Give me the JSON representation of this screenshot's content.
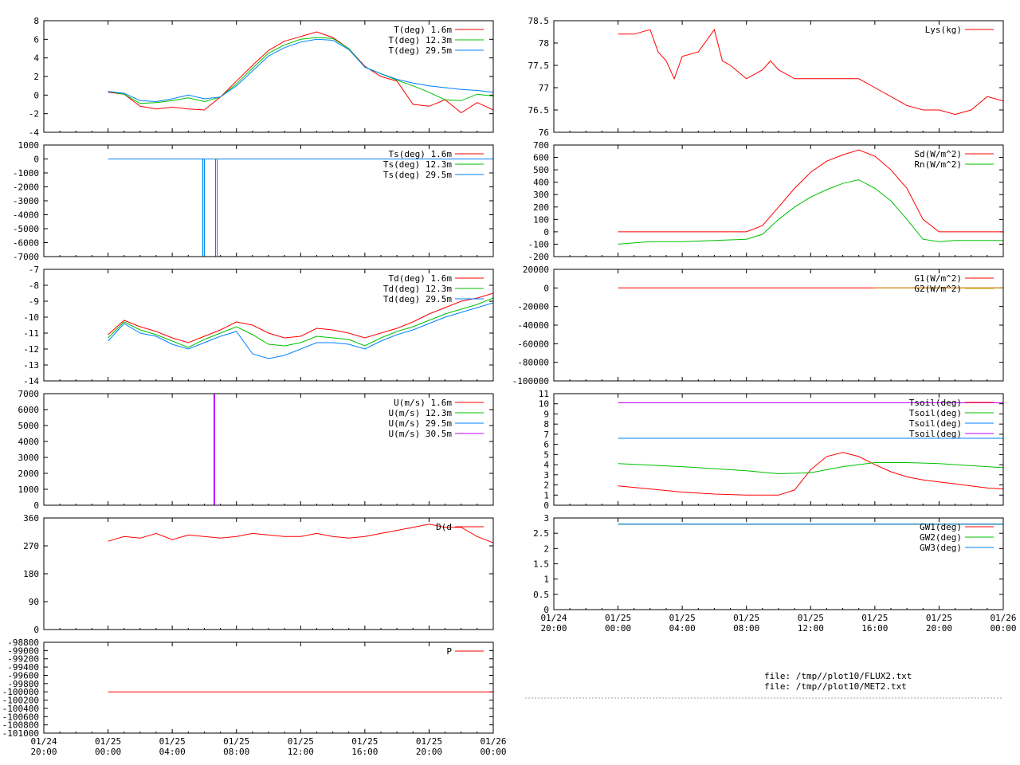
{
  "colors": {
    "red": "#ff0000",
    "green": "#00c000",
    "blue": "#0080ff",
    "magenta": "#c000ff",
    "olive": "#c0a000"
  },
  "files": [
    "file: /tmp//plot10/FLUX2.txt",
    "file: /tmp//plot10/MET2.txt"
  ],
  "time_axis": {
    "ticks": [
      "01/24 20:00",
      "01/25 00:00",
      "01/25 04:00",
      "01/25 08:00",
      "01/25 12:00",
      "01/25 16:00",
      "01/25 20:00",
      "01/26 00:00"
    ],
    "range_hours": [
      0,
      28
    ]
  },
  "chart_data": [
    {
      "id": "temperature",
      "type": "line",
      "ylim": [
        -4,
        8
      ],
      "yticks": [
        "-4",
        "-2",
        "0",
        "2",
        "4",
        "6",
        "8"
      ],
      "series": [
        {
          "name": "T(deg)  1.6m",
          "color": "#ff0000",
          "x": [
            4,
            5,
            6,
            7,
            8,
            9,
            10,
            11,
            12,
            13,
            14,
            15,
            16,
            17,
            18,
            19,
            20,
            21,
            22,
            23,
            24,
            25,
            26,
            27,
            28
          ],
          "y": [
            0.3,
            0.1,
            -1.2,
            -1.5,
            -1.3,
            -1.5,
            -1.6,
            -0.2,
            1.5,
            3.2,
            4.8,
            5.8,
            6.3,
            6.8,
            6.2,
            5.0,
            3.1,
            2.0,
            1.5,
            -1.0,
            -1.2,
            -0.5,
            -1.9,
            -0.8,
            -1.6
          ]
        },
        {
          "name": "T(deg) 12.3m",
          "color": "#00c000",
          "x": [
            4,
            5,
            6,
            7,
            8,
            9,
            10,
            11,
            12,
            13,
            14,
            15,
            16,
            17,
            18,
            19,
            20,
            21,
            22,
            23,
            24,
            25,
            26,
            27,
            28
          ],
          "y": [
            0.4,
            0.1,
            -0.9,
            -0.8,
            -0.6,
            -0.3,
            -0.7,
            -0.2,
            1.2,
            2.9,
            4.5,
            5.4,
            6.0,
            6.2,
            6.1,
            5.0,
            3.0,
            2.3,
            1.6,
            1.0,
            0.3,
            -0.5,
            -0.6,
            0.1,
            -0.1
          ]
        },
        {
          "name": "T(deg) 29.5m",
          "color": "#0080ff",
          "x": [
            4,
            5,
            6,
            7,
            8,
            9,
            10,
            11,
            12,
            13,
            14,
            15,
            16,
            17,
            18,
            19,
            20,
            21,
            22,
            23,
            24,
            25,
            26,
            27,
            28
          ],
          "y": [
            0.4,
            0.2,
            -0.6,
            -0.7,
            -0.4,
            0.0,
            -0.4,
            -0.2,
            1.0,
            2.6,
            4.2,
            5.1,
            5.7,
            6.0,
            5.9,
            4.9,
            3.0,
            2.3,
            1.7,
            1.3,
            1.0,
            0.8,
            0.6,
            0.5,
            0.3
          ]
        }
      ]
    },
    {
      "id": "surface-temperature",
      "type": "line",
      "ylim": [
        -7000,
        1000
      ],
      "yticks": [
        "-7000",
        "-6000",
        "-5000",
        "-4000",
        "-3000",
        "-2000",
        "-1000",
        "0",
        "1000"
      ],
      "series": [
        {
          "name": "Ts(deg)  1.6m",
          "color": "#ff0000",
          "x": [
            4,
            28
          ],
          "y": [
            0,
            0
          ]
        },
        {
          "name": "Ts(deg) 12.3m",
          "color": "#00c000",
          "x": [
            4,
            9.9,
            9.9,
            10.0,
            10.0,
            28
          ],
          "y": [
            0,
            0,
            -7000,
            -7000,
            0,
            0
          ]
        },
        {
          "name": "Ts(deg) 29.5m",
          "color": "#0080ff",
          "x": [
            4,
            9.9,
            9.9,
            10.0,
            10.0,
            10.7,
            10.7,
            10.8,
            10.8,
            28
          ],
          "y": [
            0,
            0,
            -7000,
            -7000,
            0,
            0,
            -7000,
            -7000,
            0,
            0
          ]
        }
      ]
    },
    {
      "id": "dewpoint",
      "type": "line",
      "ylim": [
        -14,
        -7
      ],
      "yticks": [
        "-14",
        "-13",
        "-12",
        "-11",
        "-10",
        "-9",
        "-8",
        "-7"
      ],
      "series": [
        {
          "name": "Td(deg)  1.6m",
          "color": "#ff0000",
          "x": [
            4,
            5,
            6,
            7,
            8,
            9,
            10,
            11,
            12,
            13,
            14,
            15,
            16,
            17,
            18,
            19,
            20,
            21,
            22,
            23,
            24,
            25,
            26,
            27,
            28
          ],
          "y": [
            -11.1,
            -10.2,
            -10.6,
            -10.9,
            -11.3,
            -11.6,
            -11.2,
            -10.8,
            -10.3,
            -10.5,
            -11.0,
            -11.3,
            -11.2,
            -10.7,
            -10.8,
            -11.0,
            -11.3,
            -11.0,
            -10.7,
            -10.3,
            -9.8,
            -9.4,
            -9.0,
            -8.8,
            -8.5
          ]
        },
        {
          "name": "Td(deg) 12.3m",
          "color": "#00c000",
          "x": [
            4,
            5,
            6,
            7,
            8,
            9,
            10,
            11,
            12,
            13,
            14,
            15,
            16,
            17,
            18,
            19,
            20,
            21,
            22,
            23,
            24,
            25,
            26,
            27,
            28
          ],
          "y": [
            -11.3,
            -10.3,
            -10.8,
            -11.1,
            -11.5,
            -11.9,
            -11.4,
            -11.0,
            -10.6,
            -11.1,
            -11.7,
            -11.8,
            -11.6,
            -11.2,
            -11.3,
            -11.4,
            -11.8,
            -11.3,
            -10.9,
            -10.6,
            -10.2,
            -9.8,
            -9.5,
            -9.2,
            -8.8
          ]
        },
        {
          "name": "Td(deg) 29.5m",
          "color": "#0080ff",
          "x": [
            4,
            5,
            6,
            7,
            8,
            9,
            10,
            11,
            12,
            13,
            14,
            15,
            16,
            17,
            18,
            19,
            20,
            21,
            22,
            23,
            24,
            25,
            26,
            27,
            28
          ],
          "y": [
            -11.5,
            -10.4,
            -11.0,
            -11.2,
            -11.7,
            -12.0,
            -11.6,
            -11.2,
            -10.9,
            -12.3,
            -12.6,
            -12.4,
            -12.0,
            -11.6,
            -11.6,
            -11.7,
            -12.0,
            -11.5,
            -11.1,
            -10.8,
            -10.4,
            -10.0,
            -9.7,
            -9.4,
            -9.1
          ]
        }
      ]
    },
    {
      "id": "wind-speed",
      "type": "line",
      "ylim": [
        0,
        7000
      ],
      "yticks": [
        "0",
        "1000",
        "2000",
        "3000",
        "4000",
        "5000",
        "6000",
        "7000"
      ],
      "series": [
        {
          "name": "U(m/s)  1.6m",
          "color": "#ff0000",
          "x": [
            4,
            28
          ],
          "y": [
            0,
            0
          ]
        },
        {
          "name": "U(m/s) 12.3m",
          "color": "#00c000",
          "x": [
            4,
            28
          ],
          "y": [
            0,
            0
          ]
        },
        {
          "name": "U(m/s) 29.5m",
          "color": "#0080ff",
          "x": [
            4,
            28
          ],
          "y": [
            0,
            0
          ]
        },
        {
          "name": "U(m/s) 30.5m",
          "color": "#c000ff",
          "x": [
            4,
            10.6,
            10.6,
            10.65,
            10.65,
            28
          ],
          "y": [
            0,
            0,
            7000,
            7000,
            0,
            0
          ]
        }
      ]
    },
    {
      "id": "wind-direction",
      "type": "line",
      "ylim": [
        0,
        360
      ],
      "yticks": [
        "0",
        "90",
        "180",
        "270",
        "360"
      ],
      "series": [
        {
          "name": "D(d",
          "color": "#ff0000",
          "x": [
            4,
            5,
            6,
            7,
            8,
            9,
            10,
            11,
            12,
            13,
            14,
            15,
            16,
            17,
            18,
            19,
            20,
            21,
            22,
            23,
            24,
            25,
            26,
            27,
            28
          ],
          "y": [
            285,
            300,
            295,
            310,
            290,
            305,
            300,
            295,
            300,
            310,
            305,
            300,
            300,
            310,
            300,
            295,
            300,
            310,
            320,
            330,
            340,
            330,
            330,
            300,
            280
          ]
        }
      ]
    },
    {
      "id": "pressure",
      "type": "line",
      "ylim": [
        -101000,
        -98800
      ],
      "yticks": [
        "-101000",
        "-100800",
        "-100600",
        "-100400",
        "-100200",
        "-100000",
        "-99800",
        "-99600",
        "-99400",
        "-99200",
        "-99000",
        "-98800"
      ],
      "series": [
        {
          "name": "P",
          "color": "#ff0000",
          "x": [
            4,
            28
          ],
          "y": [
            -100000,
            -100000
          ]
        }
      ]
    },
    {
      "id": "lysimeter",
      "type": "line",
      "ylim": [
        76,
        78.5
      ],
      "yticks": [
        "76",
        "76.5",
        "77",
        "77.5",
        "78",
        "78.5"
      ],
      "series": [
        {
          "name": "Lys(kg)",
          "color": "#ff0000",
          "x": [
            4,
            5,
            6,
            6.5,
            7,
            7.5,
            8,
            9,
            10,
            10.5,
            11,
            12,
            13,
            13.5,
            14,
            15,
            16,
            17,
            18,
            19,
            20,
            21,
            22,
            23,
            24,
            25,
            26,
            27,
            28
          ],
          "y": [
            78.2,
            78.2,
            78.3,
            77.8,
            77.6,
            77.2,
            77.7,
            77.8,
            78.3,
            77.6,
            77.5,
            77.2,
            77.4,
            77.6,
            77.4,
            77.2,
            77.2,
            77.2,
            77.2,
            77.2,
            77.0,
            76.8,
            76.6,
            76.5,
            76.5,
            76.4,
            76.5,
            76.8,
            76.7
          ]
        }
      ]
    },
    {
      "id": "radiation",
      "type": "line",
      "ylim": [
        -200,
        700
      ],
      "yticks": [
        "-200",
        "-100",
        "0",
        "100",
        "200",
        "300",
        "400",
        "500",
        "600",
        "700"
      ],
      "series": [
        {
          "name": "Sd(W/m^2)",
          "color": "#ff0000",
          "x": [
            4,
            8,
            11,
            12,
            13,
            14,
            15,
            16,
            17,
            18,
            19,
            20,
            21,
            22,
            23,
            24,
            25,
            26,
            27,
            28
          ],
          "y": [
            0,
            0,
            0,
            0,
            50,
            200,
            350,
            480,
            570,
            620,
            660,
            610,
            500,
            350,
            100,
            0,
            0,
            0,
            0,
            0
          ]
        },
        {
          "name": "Rn(W/m^2)",
          "color": "#00c000",
          "x": [
            4,
            6,
            8,
            10,
            12,
            13,
            14,
            15,
            16,
            17,
            18,
            19,
            20,
            21,
            22,
            23,
            24,
            25,
            26,
            27,
            28
          ],
          "y": [
            -100,
            -80,
            -80,
            -70,
            -60,
            -20,
            100,
            200,
            280,
            340,
            390,
            420,
            350,
            250,
            100,
            -60,
            -80,
            -70,
            -70,
            -70,
            -70
          ]
        }
      ]
    },
    {
      "id": "ground-flux",
      "type": "line",
      "ylim": [
        -100000,
        20000
      ],
      "yticks": [
        "-100000",
        "-80000",
        "-60000",
        "-40000",
        "-20000",
        "0",
        "20000"
      ],
      "series": [
        {
          "name": "G1(W/m^2)",
          "color": "#ff0000",
          "x": [
            4,
            28
          ],
          "y": [
            0,
            0
          ]
        },
        {
          "name": "G2(W/m^2)",
          "color": "#c0a000",
          "x": [
            20,
            28
          ],
          "y": [
            0,
            0
          ]
        }
      ]
    },
    {
      "id": "soil-temperature",
      "type": "line",
      "ylim": [
        0,
        11
      ],
      "yticks": [
        "0",
        "1",
        "2",
        "3",
        "4",
        "5",
        "6",
        "7",
        "8",
        "9",
        "10",
        "11"
      ],
      "series": [
        {
          "name": "Tsoil(deg)",
          "color": "#ff0000",
          "x": [
            4,
            6,
            8,
            10,
            12,
            13,
            14,
            15,
            16,
            17,
            18,
            19,
            20,
            21,
            22,
            23,
            24,
            25,
            26,
            27,
            28
          ],
          "y": [
            1.9,
            1.6,
            1.3,
            1.1,
            1.0,
            1.0,
            1.0,
            1.5,
            3.5,
            4.8,
            5.2,
            4.8,
            4.0,
            3.3,
            2.8,
            2.5,
            2.3,
            2.1,
            1.9,
            1.7,
            1.6
          ]
        },
        {
          "name": "Tsoil(deg)",
          "color": "#00c000",
          "x": [
            4,
            8,
            12,
            14,
            16,
            18,
            20,
            22,
            24,
            26,
            28
          ],
          "y": [
            4.1,
            3.8,
            3.4,
            3.1,
            3.2,
            3.8,
            4.2,
            4.2,
            4.1,
            3.9,
            3.7
          ]
        },
        {
          "name": "Tsoil(deg)",
          "color": "#0080ff",
          "x": [
            4,
            28
          ],
          "y": [
            6.6,
            6.6
          ]
        },
        {
          "name": "Tsoil(deg)",
          "color": "#c000ff",
          "x": [
            4,
            28
          ],
          "y": [
            10.1,
            10.1
          ]
        }
      ]
    },
    {
      "id": "ground-water",
      "type": "line",
      "ylim": [
        0,
        3
      ],
      "yticks": [
        "0",
        "0.5",
        "1",
        "1.5",
        "2",
        "2.5",
        "3"
      ],
      "series": [
        {
          "name": "GW1(deg)",
          "color": "#ff0000",
          "x": [
            4,
            28
          ],
          "y": [
            2.8,
            2.8
          ]
        },
        {
          "name": "GW2(deg)",
          "color": "#00c000",
          "x": [
            4,
            28
          ],
          "y": [
            2.8,
            2.8
          ]
        },
        {
          "name": "GW3(deg)",
          "color": "#0080ff",
          "x": [
            4,
            28
          ],
          "y": [
            2.8,
            2.8
          ]
        }
      ]
    }
  ]
}
